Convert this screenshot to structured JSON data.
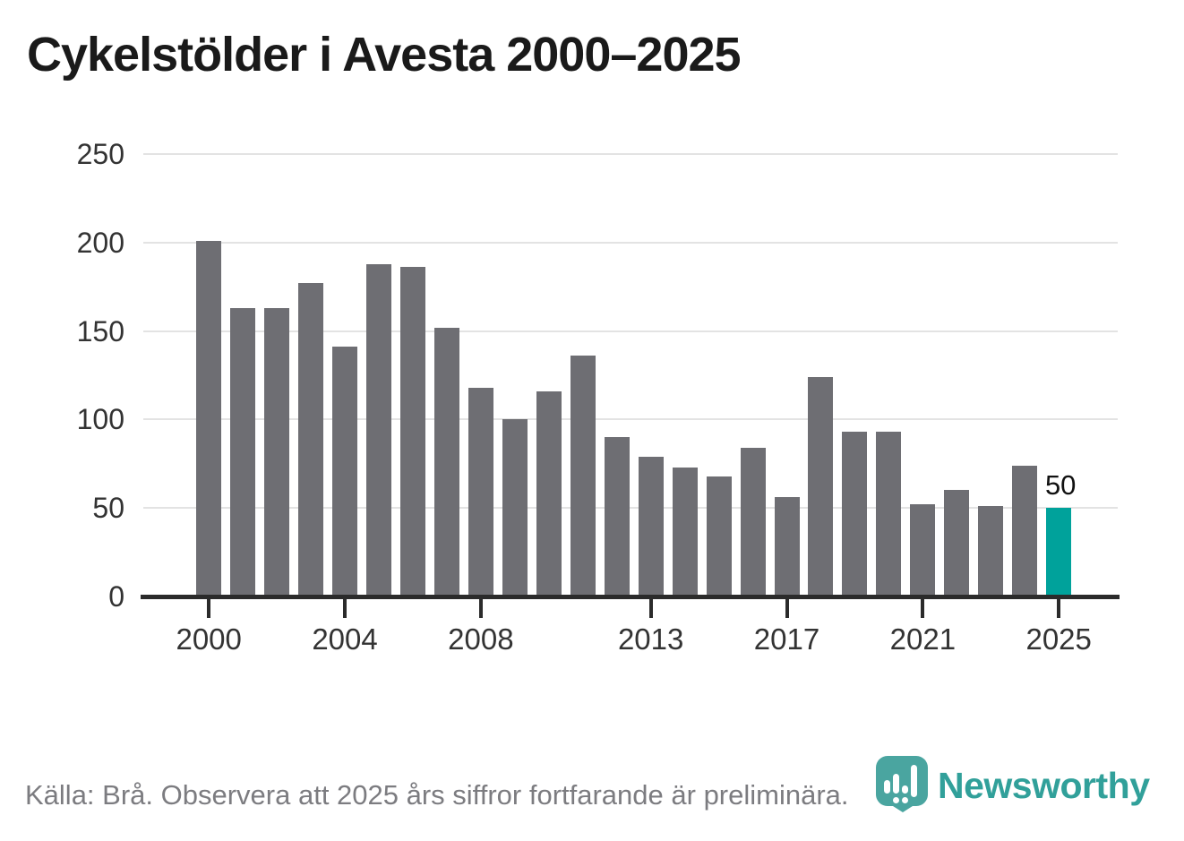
{
  "title": "Cykelstölder i Avesta 2000–2025",
  "footer": {
    "source_note": "Källa: Brå. Observera att 2025 års siffror fortfarande är preliminära."
  },
  "logo": {
    "brand": "Newsworthy",
    "icon": "newsworthy-pin-barchart-icon"
  },
  "colors": {
    "bar": "#6e6e73",
    "highlight": "#00a29b",
    "axis": "#2b2b2b",
    "gridline": "#e3e3e3",
    "title": "#1a1a1a",
    "axis_label": "#333333",
    "footer_text": "#7c7c80",
    "logo_icon": "#4aa5a0",
    "logo_text": "#31a09a",
    "annotation": "#111111"
  },
  "chart_data": {
    "type": "bar",
    "title": "Cykelstölder i Avesta 2000–2025",
    "xlabel": "",
    "ylabel": "",
    "categories": [
      2000,
      2001,
      2002,
      2003,
      2004,
      2005,
      2006,
      2007,
      2008,
      2009,
      2010,
      2011,
      2012,
      2013,
      2014,
      2015,
      2016,
      2017,
      2018,
      2019,
      2020,
      2021,
      2022,
      2023,
      2024,
      2025
    ],
    "values": [
      201,
      163,
      163,
      177,
      141,
      188,
      186,
      152,
      118,
      100,
      116,
      136,
      90,
      79,
      73,
      68,
      84,
      56,
      124,
      93,
      93,
      52,
      60,
      51,
      74,
      50
    ],
    "ylim": [
      0,
      250
    ],
    "yticks": [
      0,
      50,
      100,
      150,
      200,
      250
    ],
    "xticks": [
      2000,
      2004,
      2008,
      2013,
      2017,
      2021,
      2025
    ],
    "grid": "horizontal",
    "legend": "none",
    "highlight_category": 2025,
    "annotation": {
      "category": 2025,
      "text": "50"
    },
    "source": "Källa: Brå. Observera att 2025 års siffror fortfarande är preliminära."
  }
}
